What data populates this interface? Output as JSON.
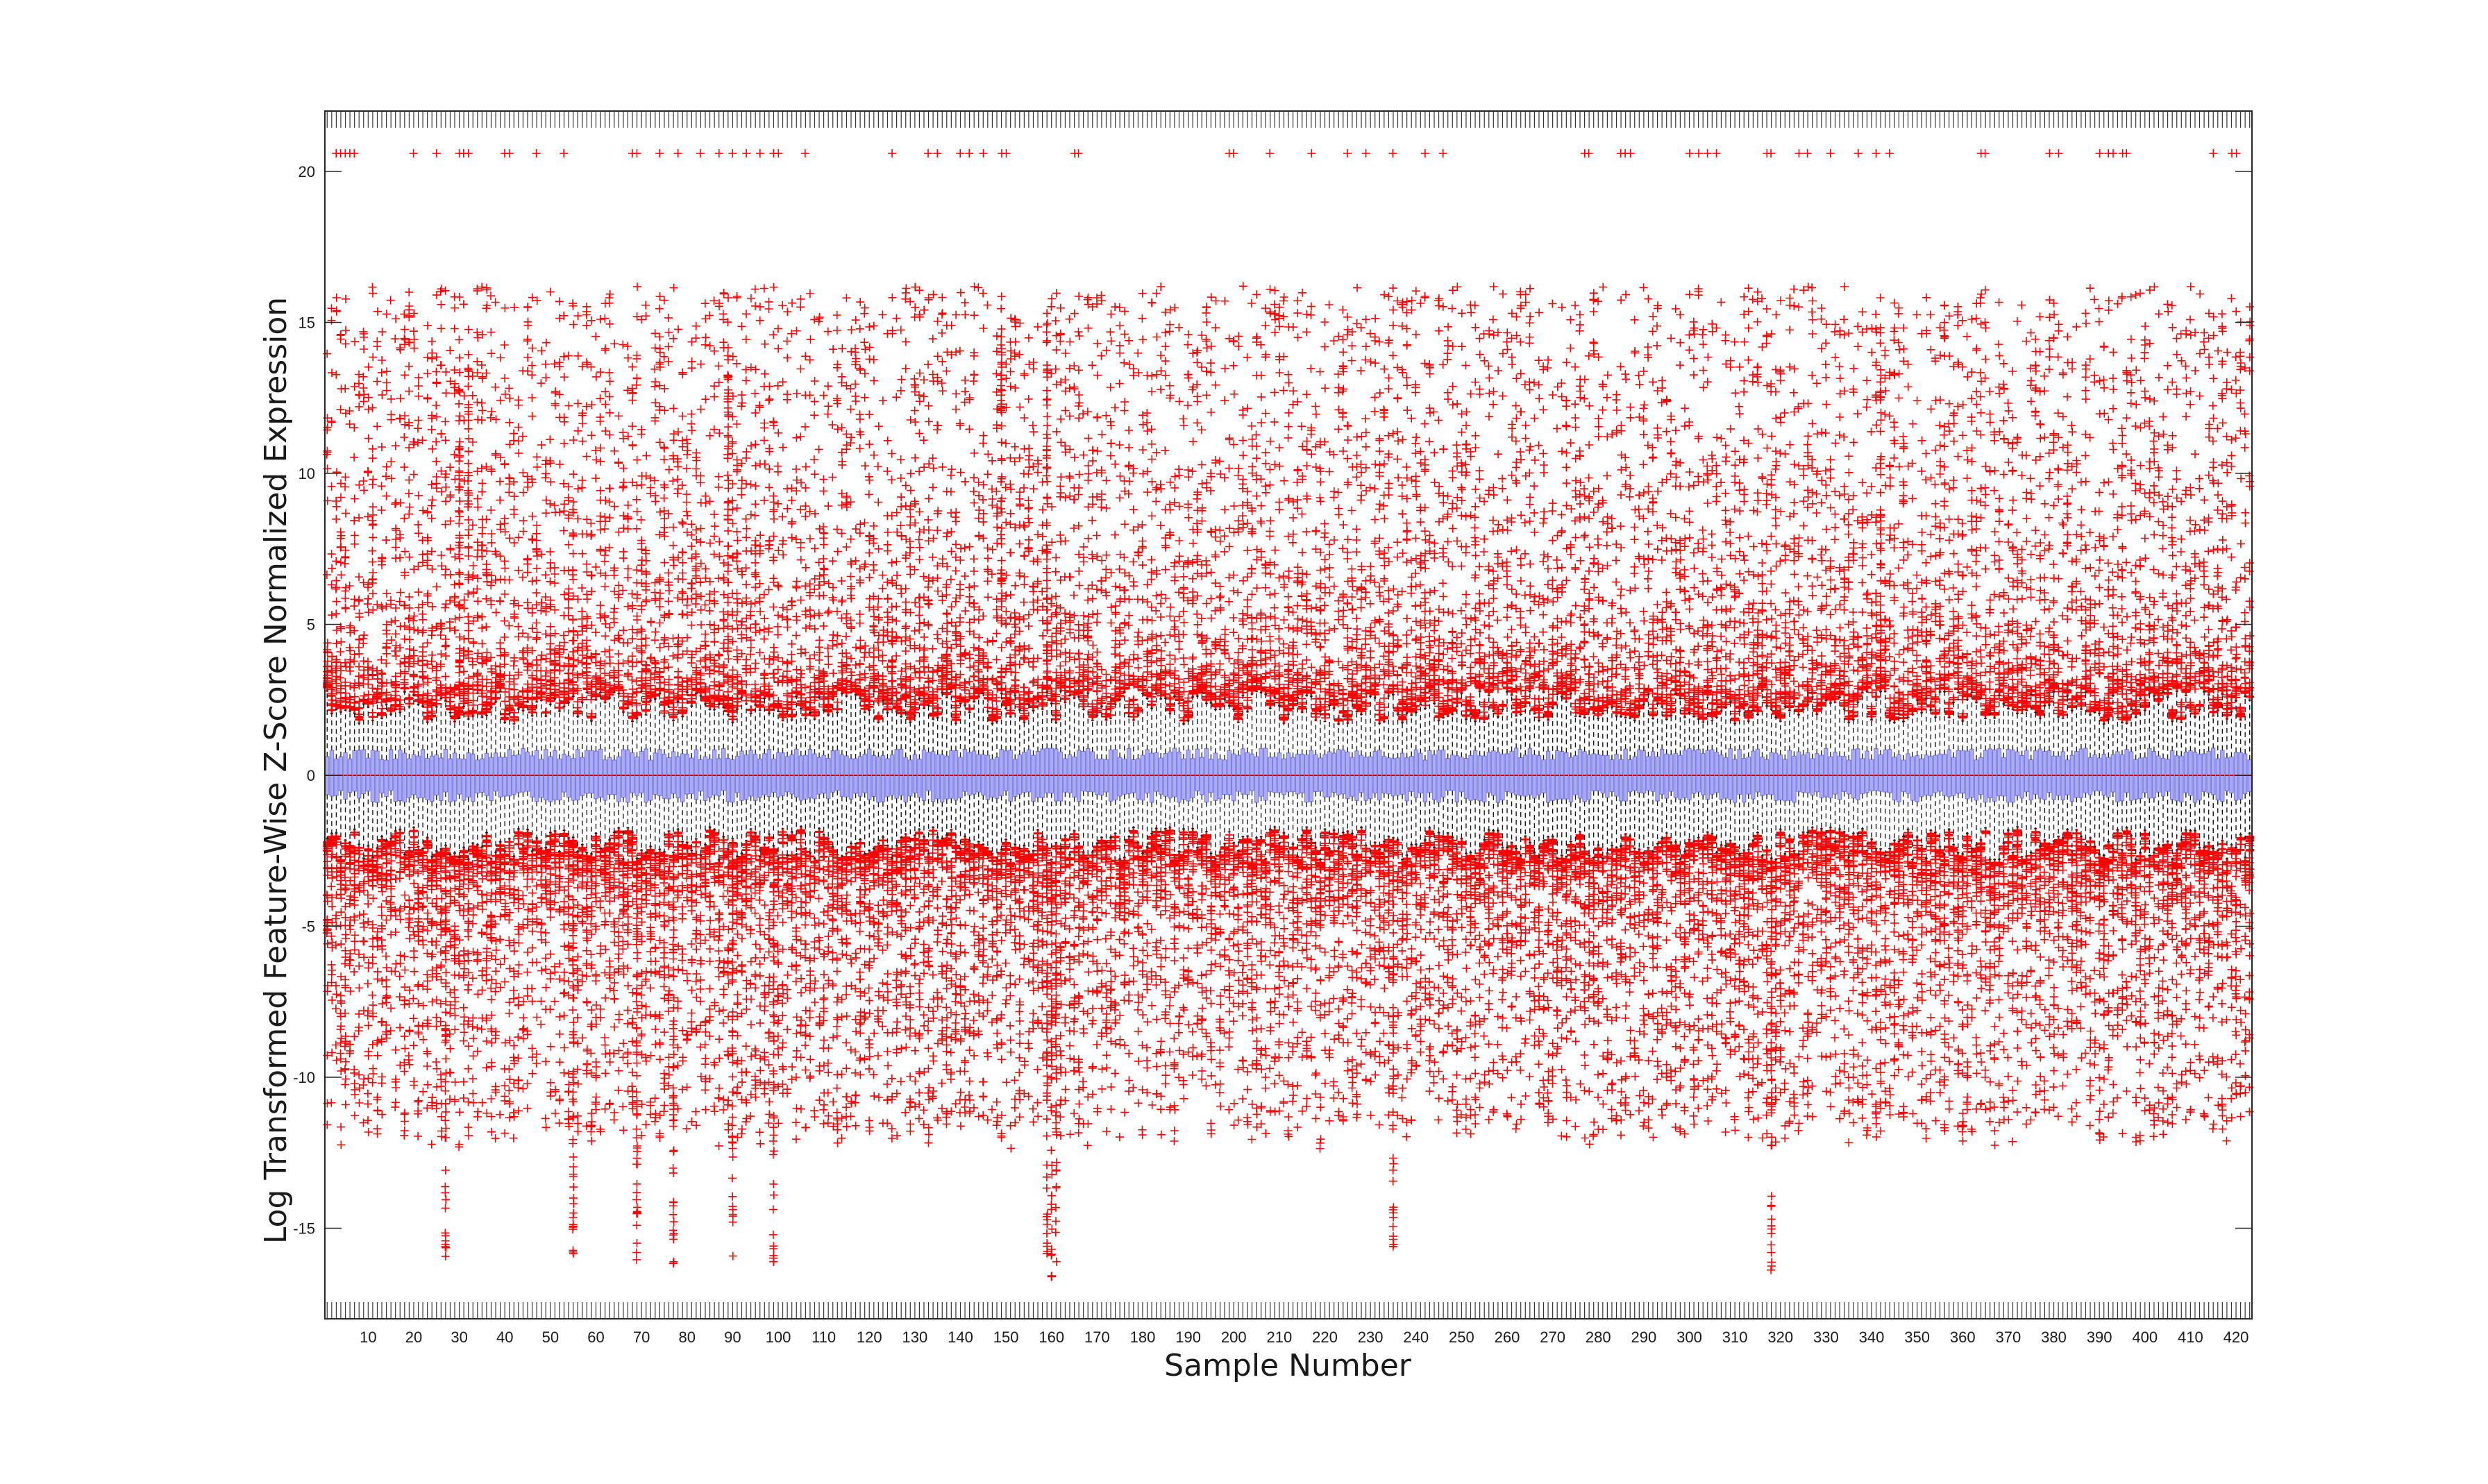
{
  "chart_data": {
    "type": "box",
    "title": "",
    "xlabel": "Sample Number",
    "ylabel": "Log Transformed Feature-Wise Z-Score Normalized Expression",
    "sample_count": 423,
    "xlim": [
      0.5,
      423.5
    ],
    "ylim": [
      -18,
      22
    ],
    "x_ticks": [
      10,
      20,
      30,
      40,
      50,
      60,
      70,
      80,
      90,
      100,
      110,
      120,
      130,
      140,
      150,
      160,
      170,
      180,
      190,
      200,
      210,
      220,
      230,
      240,
      250,
      260,
      270,
      280,
      290,
      300,
      310,
      320,
      330,
      340,
      350,
      360,
      370,
      380,
      390,
      400,
      410,
      420
    ],
    "y_ticks": [
      -15,
      -10,
      -5,
      0,
      5,
      10,
      15,
      20
    ],
    "grid": false,
    "box_summary": {
      "median": 0,
      "q1_range": [
        -0.9,
        -0.5
      ],
      "q3_range": [
        0.5,
        0.9
      ],
      "whisker_low_range": [
        -2.8,
        -1.7
      ],
      "whisker_high_range": [
        1.7,
        2.8
      ],
      "outlier_high_max": 20.6,
      "outlier_low_min": -16.8
    },
    "capped_outliers_y": 20.6,
    "capped_outlier_samples": [
      3,
      4,
      5,
      6,
      7,
      20,
      25,
      30,
      31,
      32,
      40,
      41,
      47,
      53,
      68,
      69,
      74,
      78,
      83,
      87,
      90,
      93,
      96,
      99,
      100,
      106,
      125,
      133,
      135,
      140,
      142,
      145,
      149,
      150,
      165,
      166,
      199,
      200,
      208,
      217,
      225,
      229,
      235,
      242,
      246,
      277,
      278,
      285,
      286,
      287,
      300,
      302,
      304,
      306,
      317,
      318,
      324,
      326,
      331,
      337,
      341,
      344,
      364,
      365,
      379,
      381,
      390,
      392,
      393,
      395,
      396,
      415,
      419,
      420
    ],
    "high_spike_samples": [
      30,
      32,
      89,
      149,
      159,
      342
    ],
    "low_spike_samples": [
      27,
      55,
      69,
      77,
      90,
      99,
      159,
      160,
      161,
      235,
      318
    ],
    "colors": {
      "box_fill": "#aaaaf5",
      "box_edge": "#3333cc",
      "whisker": "#1a1a1a",
      "median": "#cc0000",
      "outlier": "#ff0000"
    }
  }
}
